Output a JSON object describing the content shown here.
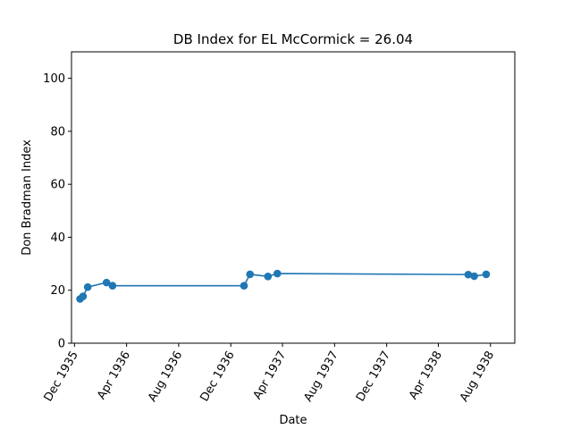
{
  "chart_data": {
    "type": "line",
    "title": "DB Index for EL McCormick = 26.04",
    "xlabel": "Date",
    "ylabel": "Don Bradman Index",
    "ylim": [
      0,
      110
    ],
    "xlim": [
      "1935-11-24",
      "1938-09-27"
    ],
    "yticks": [
      0,
      20,
      40,
      60,
      80,
      100
    ],
    "xticks": [
      {
        "date": "1935-12-01",
        "label": "Dec 1935"
      },
      {
        "date": "1936-04-01",
        "label": "Apr 1936"
      },
      {
        "date": "1936-08-01",
        "label": "Aug 1936"
      },
      {
        "date": "1936-12-01",
        "label": "Dec 1936"
      },
      {
        "date": "1937-04-01",
        "label": "Apr 1937"
      },
      {
        "date": "1937-08-01",
        "label": "Aug 1937"
      },
      {
        "date": "1937-12-01",
        "label": "Dec 1937"
      },
      {
        "date": "1938-04-01",
        "label": "Apr 1938"
      },
      {
        "date": "1938-08-01",
        "label": "Aug 1938"
      }
    ],
    "grid": false,
    "legend": "none",
    "marker": "circle",
    "color": "#1f77b4",
    "series": [
      {
        "points": [
          {
            "x": "1935-12-14",
            "y": 16.7
          },
          {
            "x": "1935-12-21",
            "y": 17.7
          },
          {
            "x": "1936-01-01",
            "y": 21.2
          },
          {
            "x": "1936-02-14",
            "y": 22.9
          },
          {
            "x": "1936-02-28",
            "y": 21.7
          },
          {
            "x": "1937-01-01",
            "y": 21.7
          },
          {
            "x": "1937-01-15",
            "y": 26.0
          },
          {
            "x": "1937-02-26",
            "y": 25.2
          },
          {
            "x": "1937-03-20",
            "y": 26.3
          },
          {
            "x": "1938-06-10",
            "y": 25.9
          },
          {
            "x": "1938-06-24",
            "y": 25.3
          },
          {
            "x": "1938-07-22",
            "y": 26.0
          }
        ]
      }
    ]
  }
}
